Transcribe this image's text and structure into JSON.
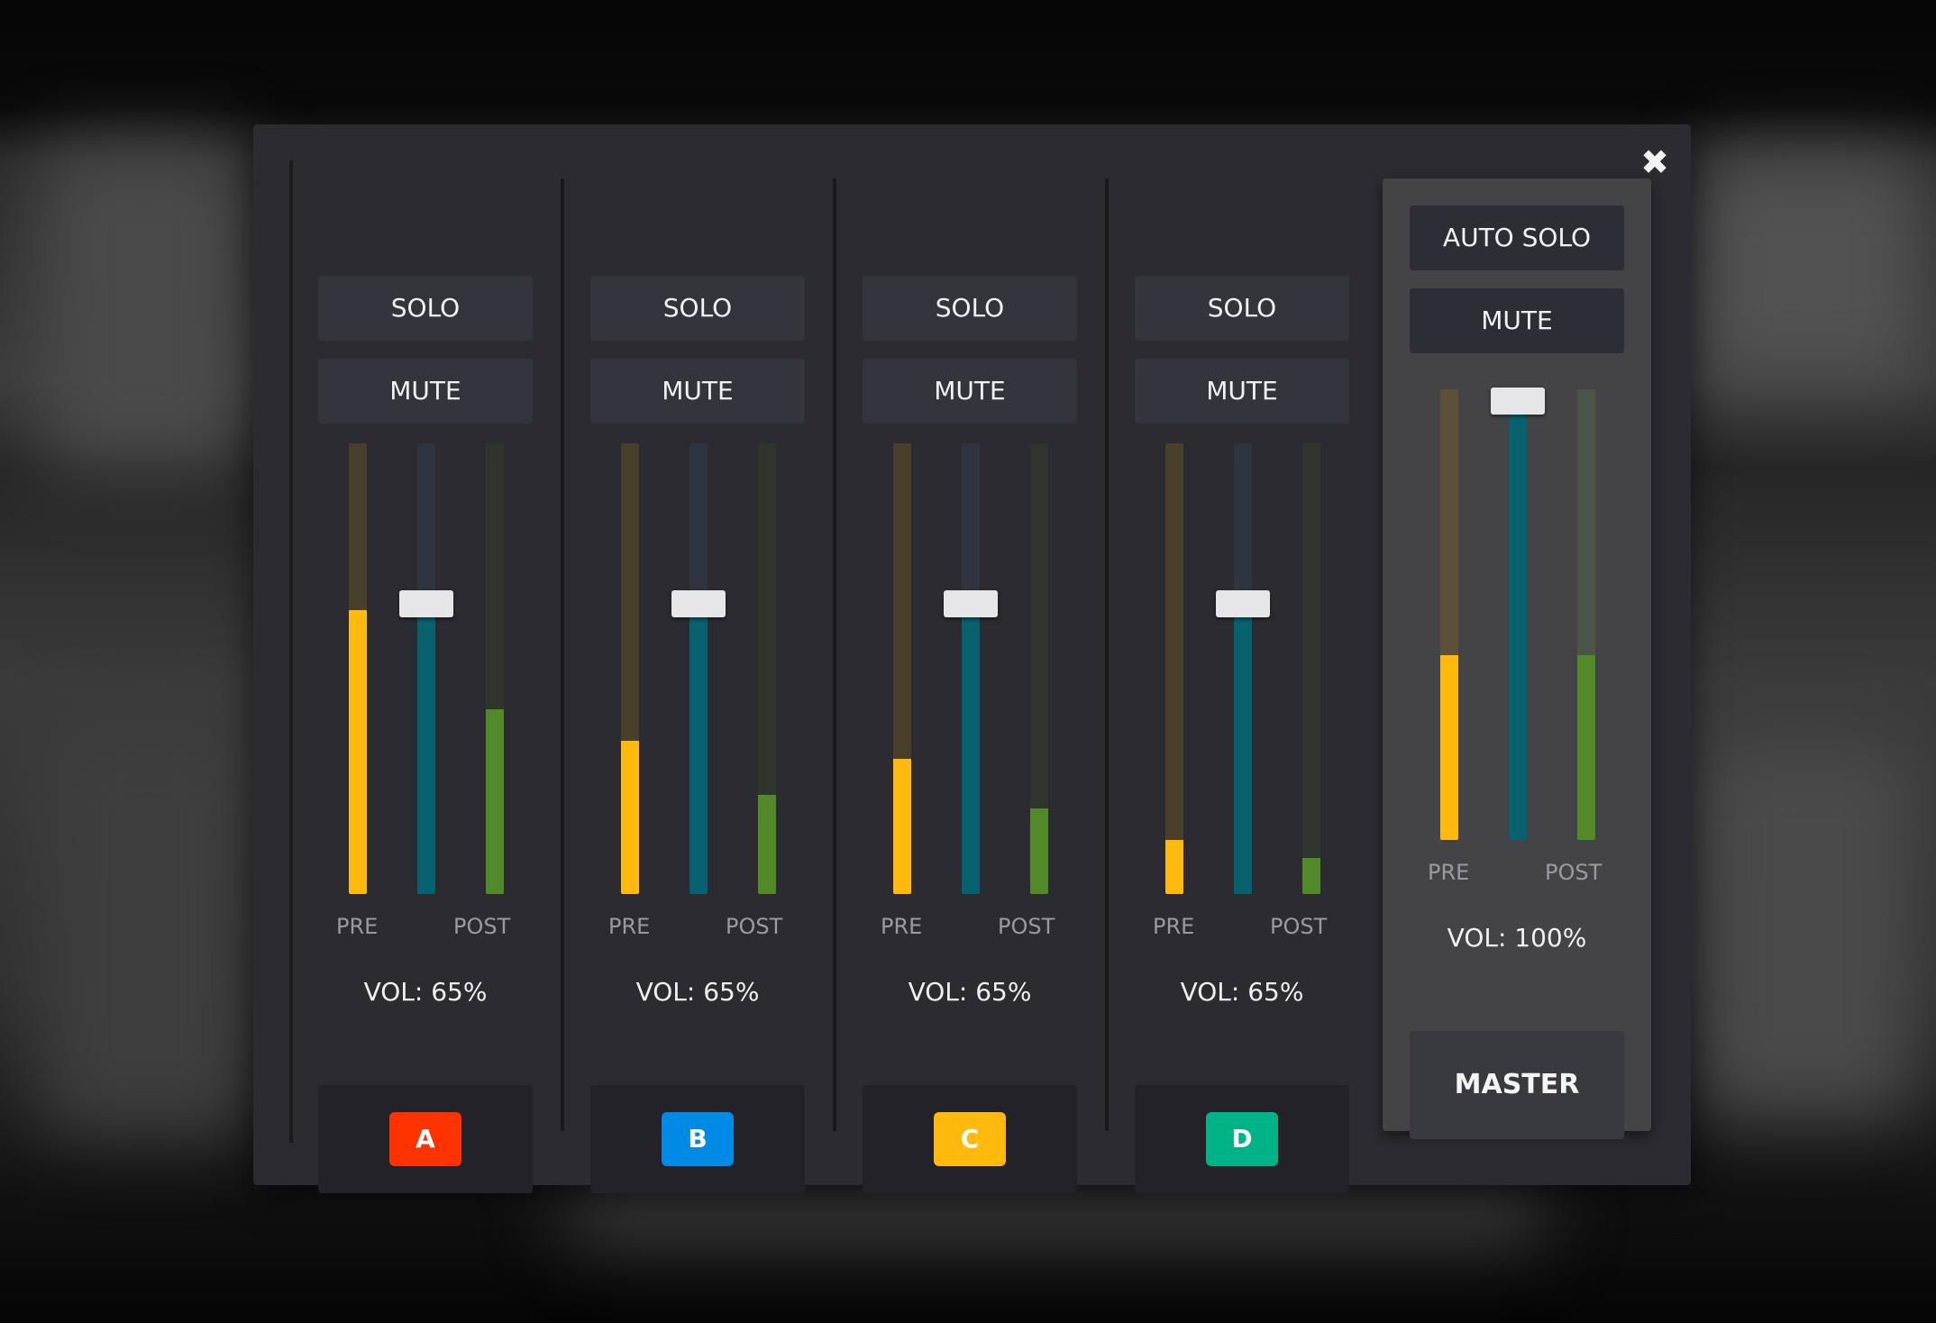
{
  "close_icon": "close-icon",
  "colors": {
    "pre_fill": "#ffba0d",
    "pre_track": "#4a3f2a",
    "vol_fill": "#08616e",
    "vol_track": "#2e3540",
    "post_fill": "#528a2a",
    "post_track": "#2d352c",
    "master_pre_track": "#5c503a",
    "master_vol_track": "#2e3540",
    "master_post_track": "#4a5547"
  },
  "channels": [
    {
      "solo_label": "SOLO",
      "mute_label": "MUTE",
      "pre_label": "PRE",
      "post_label": "POST",
      "vol_label": "VOL: 65%",
      "volume": 0.65,
      "pre_level": 0.63,
      "post_level": 0.41,
      "tag": "A",
      "tag_color": "#ff3300"
    },
    {
      "solo_label": "SOLO",
      "mute_label": "MUTE",
      "pre_label": "PRE",
      "post_label": "POST",
      "vol_label": "VOL: 65%",
      "volume": 0.65,
      "pre_level": 0.34,
      "post_level": 0.22,
      "tag": "B",
      "tag_color": "#008ae6"
    },
    {
      "solo_label": "SOLO",
      "mute_label": "MUTE",
      "pre_label": "PRE",
      "post_label": "POST",
      "vol_label": "VOL: 65%",
      "volume": 0.65,
      "pre_level": 0.3,
      "post_level": 0.19,
      "tag": "C",
      "tag_color": "#ffba0d"
    },
    {
      "solo_label": "SOLO",
      "mute_label": "MUTE",
      "pre_label": "PRE",
      "post_label": "POST",
      "vol_label": "VOL: 65%",
      "volume": 0.65,
      "pre_level": 0.12,
      "post_level": 0.08,
      "tag": "D",
      "tag_color": "#00b386"
    }
  ],
  "master": {
    "solo_label": "AUTO SOLO",
    "mute_label": "MUTE",
    "pre_label": "PRE",
    "post_label": "POST",
    "vol_label": "VOL: 100%",
    "volume": 1.0,
    "pre_level": 0.41,
    "post_level": 0.41,
    "tag": "MASTER"
  }
}
